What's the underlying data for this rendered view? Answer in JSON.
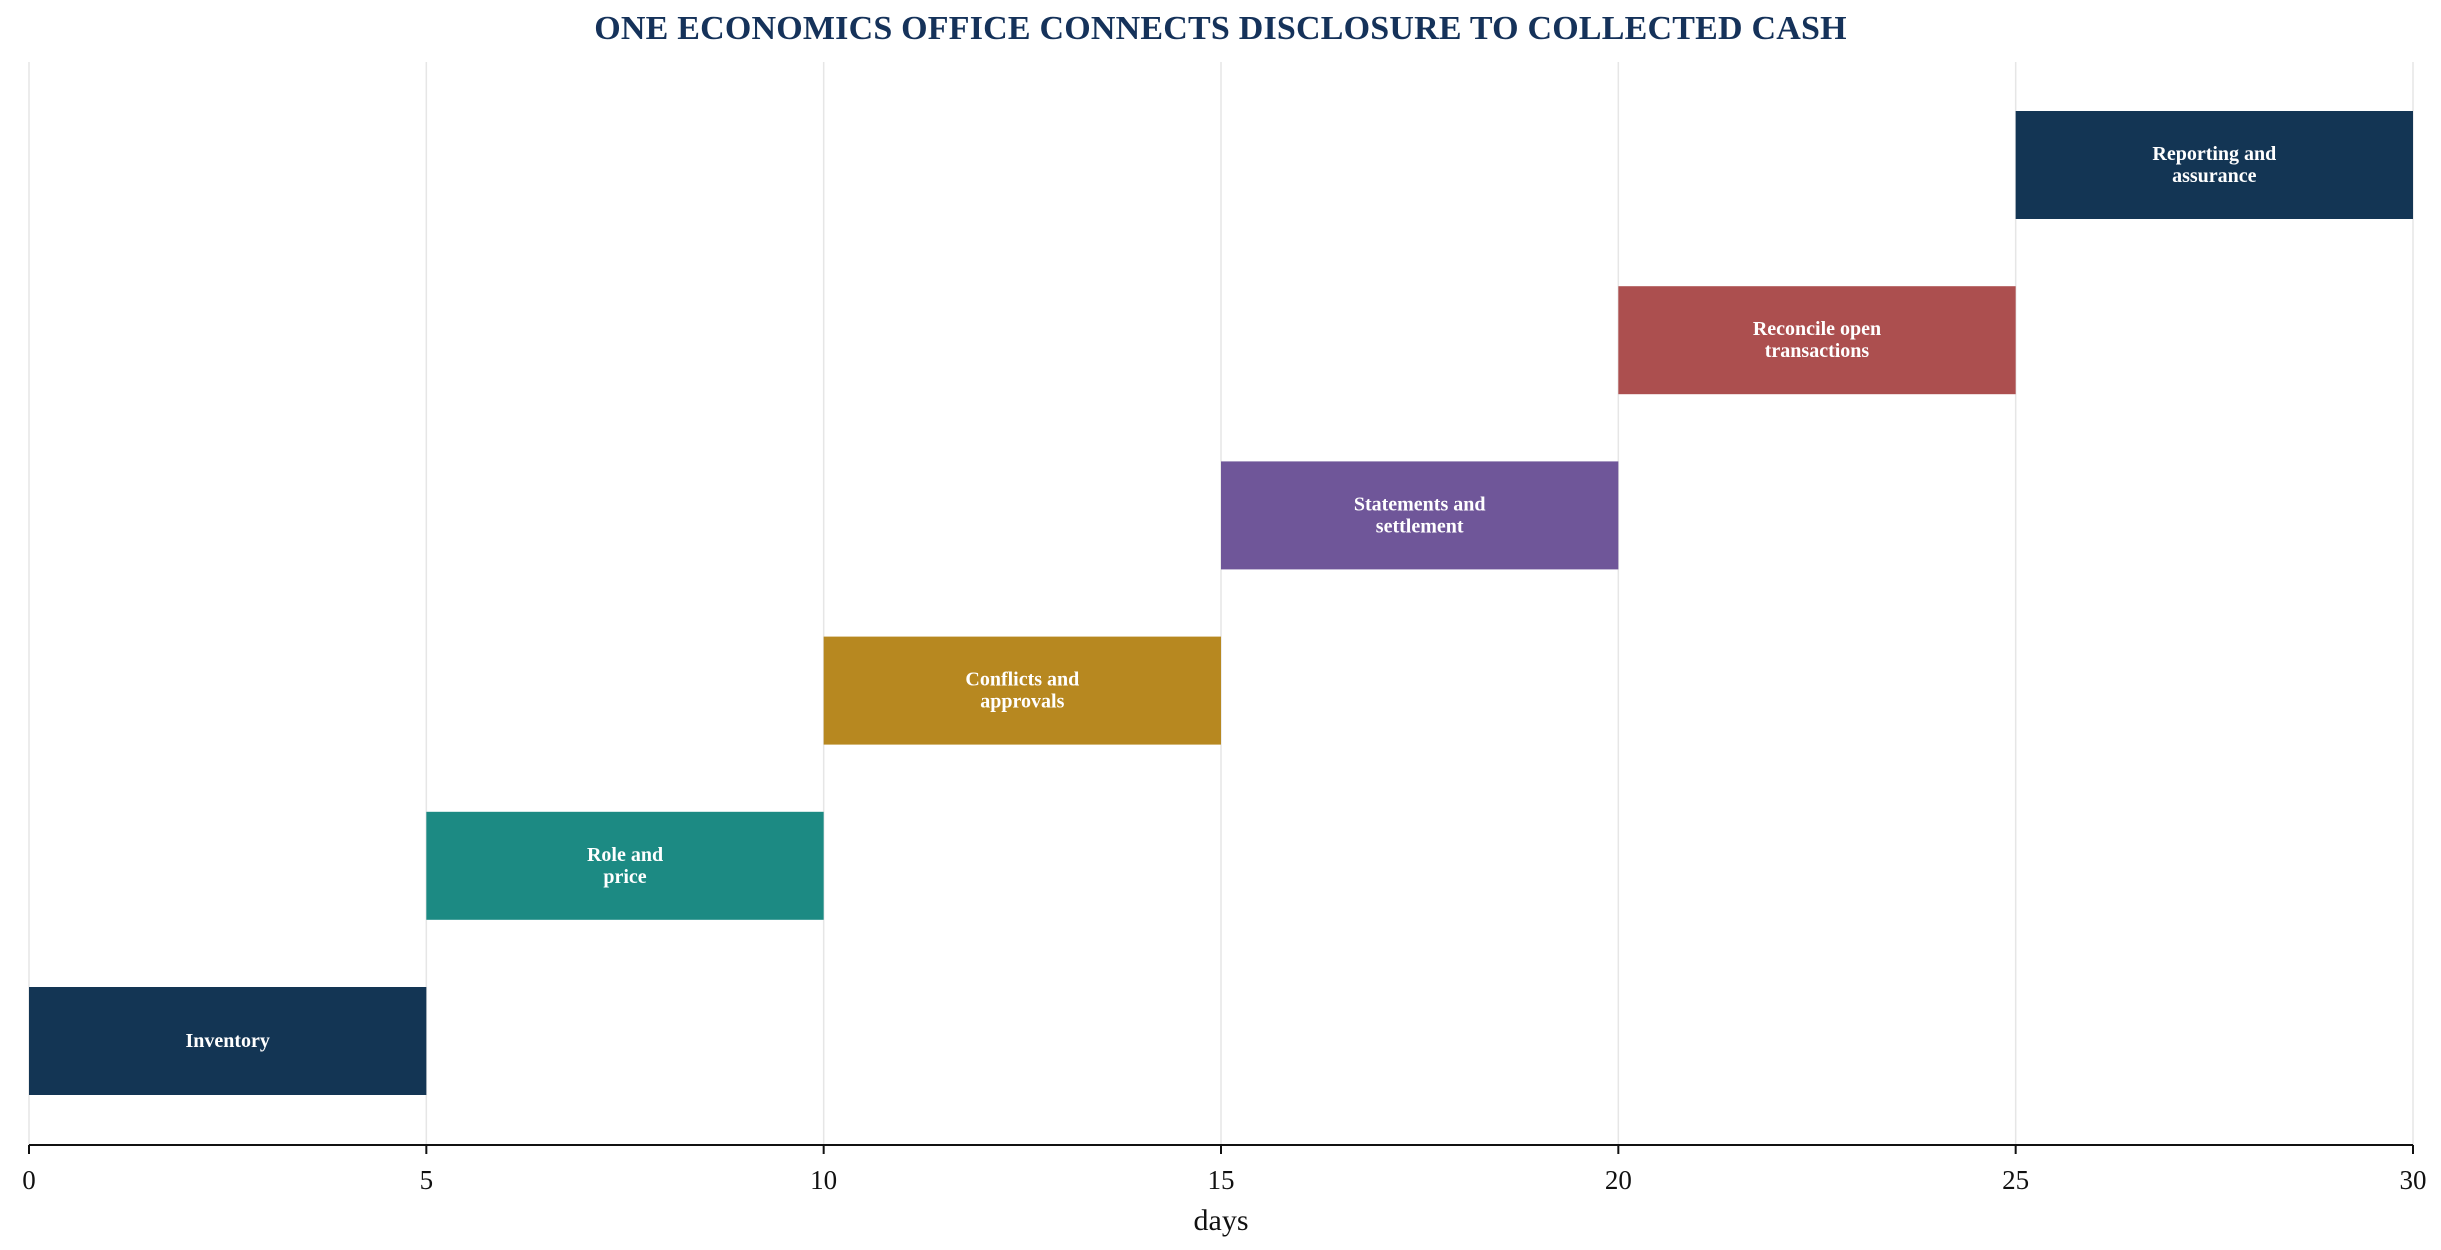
{
  "chart_data": {
    "type": "gantt",
    "title": "ONE ECONOMICS OFFICE CONNECTS DISCLOSURE TO COLLECTED CASH",
    "xlabel": "days",
    "ylabel": "",
    "xlim": [
      0,
      30
    ],
    "xticks": [
      0,
      5,
      10,
      15,
      20,
      25,
      30
    ],
    "grid": "vertical",
    "tasks": [
      {
        "label": "Inventory",
        "lines": [
          "Inventory"
        ],
        "start": 0,
        "end": 5,
        "color": "#133554"
      },
      {
        "label": "Role and price",
        "lines": [
          "Role and",
          "price"
        ],
        "start": 5,
        "end": 10,
        "color": "#1c8a83"
      },
      {
        "label": "Conflicts and approvals",
        "lines": [
          "Conflicts and",
          "approvals"
        ],
        "start": 10,
        "end": 15,
        "color": "#b78820"
      },
      {
        "label": "Statements and settlement",
        "lines": [
          "Statements and",
          "settlement"
        ],
        "start": 15,
        "end": 20,
        "color": "#6f5699"
      },
      {
        "label": "Reconcile open transactions",
        "lines": [
          "Reconcile open",
          "transactions"
        ],
        "start": 20,
        "end": 25,
        "color": "#ac4f4f"
      },
      {
        "label": "Reporting and assurance",
        "lines": [
          "Reporting and",
          "assurance"
        ],
        "start": 25,
        "end": 30,
        "color": "#133554"
      }
    ]
  },
  "colors": {
    "title": "#15325a",
    "grid": "#e6e6e6",
    "axis": "#111111",
    "bar_text": "#ffffff"
  }
}
